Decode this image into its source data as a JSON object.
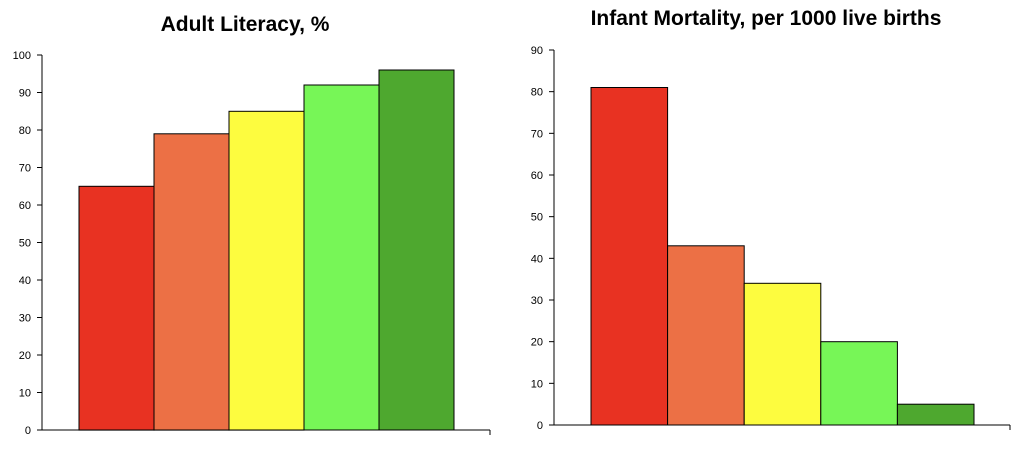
{
  "chart_data": [
    {
      "type": "bar",
      "title": "Adult Literacy, %",
      "xlabel": "",
      "ylabel": "",
      "categories": [
        "",
        "",
        "",
        "",
        ""
      ],
      "values": [
        65,
        79,
        85,
        92,
        96
      ],
      "colors": [
        "#e83222",
        "#ec7045",
        "#fdfc3f",
        "#77f657",
        "#4ea82f"
      ],
      "ylim": [
        0,
        100
      ],
      "yticks": [
        0,
        10,
        20,
        30,
        40,
        50,
        60,
        70,
        80,
        90,
        100
      ],
      "grid": false,
      "legend": "none"
    },
    {
      "type": "bar",
      "title": "Infant Mortality, per 1000 live births",
      "xlabel": "",
      "ylabel": "",
      "categories": [
        "",
        "",
        "",
        "",
        ""
      ],
      "values": [
        81,
        43,
        34,
        20,
        5
      ],
      "colors": [
        "#e83222",
        "#ec7045",
        "#fdfc3f",
        "#77f657",
        "#4ea82f"
      ],
      "ylim": [
        0,
        90
      ],
      "yticks": [
        0,
        10,
        20,
        30,
        40,
        50,
        60,
        70,
        80,
        90
      ],
      "grid": false,
      "legend": "none"
    }
  ]
}
